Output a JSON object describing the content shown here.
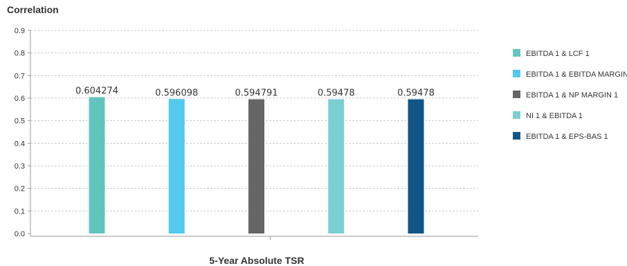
{
  "chart_data": {
    "type": "bar",
    "title": "",
    "ylabel": "Correlation",
    "xlabel": "5-Year Absolute TSR",
    "ylim": [
      0,
      0.9
    ],
    "yticks": [
      "0.0",
      "0.1",
      "0.2",
      "0.3",
      "0.4",
      "0.5",
      "0.6",
      "0.7",
      "0.8",
      "0.9"
    ],
    "grid": true,
    "legend_position": "right",
    "series": [
      {
        "name": "EBITDA 1 & LCF 1",
        "value": 0.604274,
        "label": "0.604274",
        "color": "#62c5bd"
      },
      {
        "name": "EBITDA 1 & EBITDA MARGIN",
        "value": 0.596098,
        "label": "0.596098",
        "color": "#55c8ee"
      },
      {
        "name": "EBITDA 1 & NP MARGIN 1",
        "value": 0.594791,
        "label": "0.594791",
        "color": "#666666"
      },
      {
        "name": "NI 1 & EBITDA 1",
        "value": 0.59478,
        "label": "0.59478",
        "color": "#7ccfd1"
      },
      {
        "name": "EBITDA 1 & EPS-BAS 1",
        "value": 0.59478,
        "label": "0.59478",
        "color": "#125688"
      }
    ]
  }
}
